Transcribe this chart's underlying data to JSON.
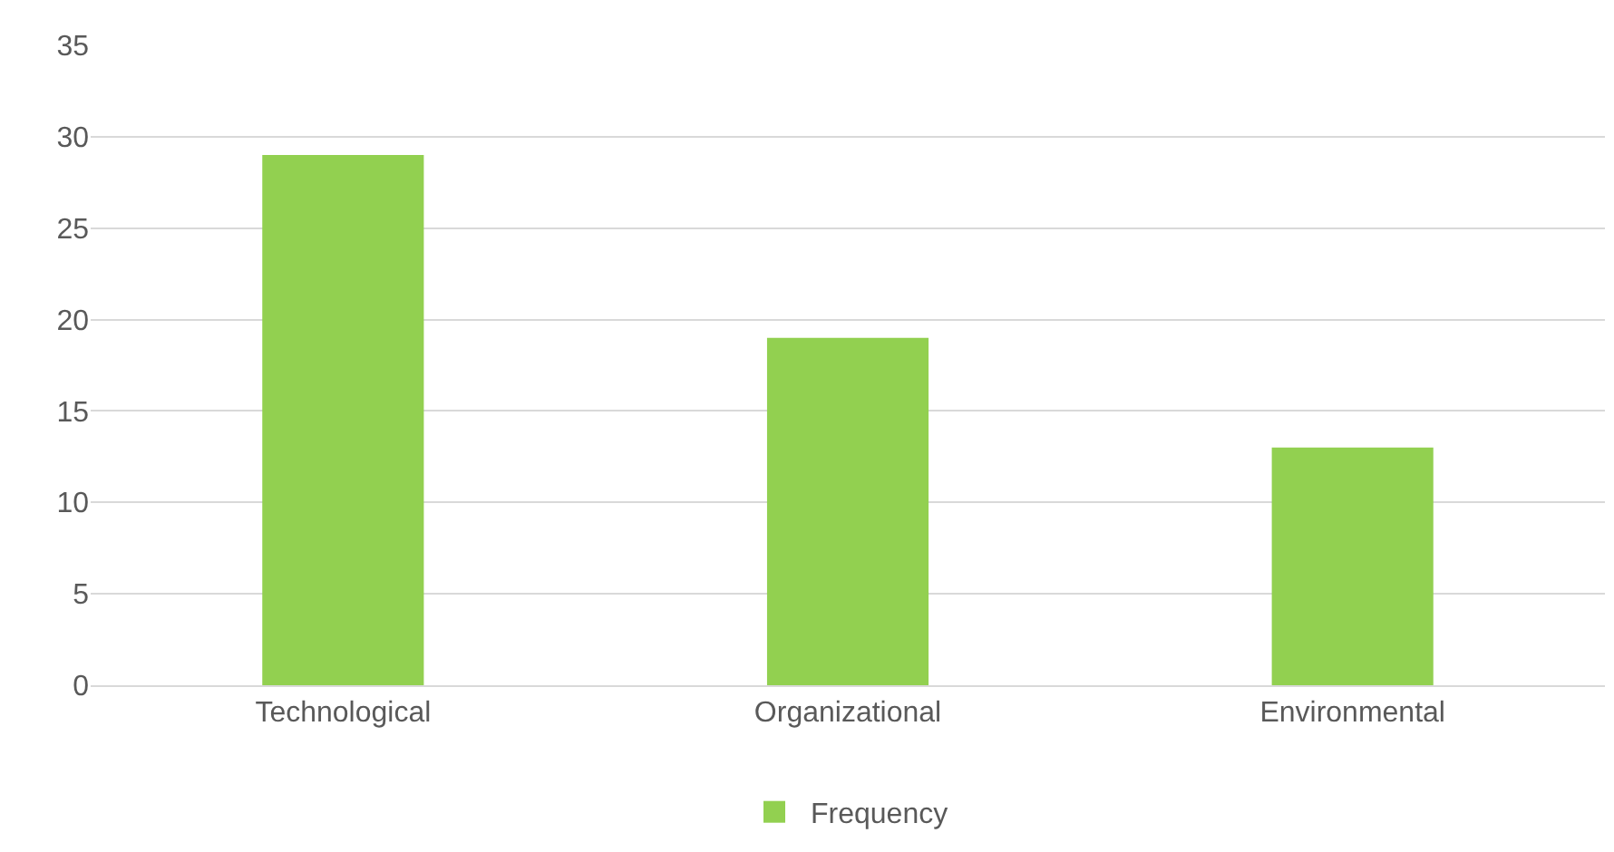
{
  "chart_data": {
    "type": "bar",
    "categories": [
      "Technological",
      "Organizational",
      "Environmental"
    ],
    "series": [
      {
        "name": "Frequency",
        "color": "#92d050",
        "values": [
          29,
          19,
          13
        ]
      }
    ],
    "ylim": [
      0,
      35
    ],
    "yticks": [
      0,
      5,
      10,
      15,
      20,
      25,
      30,
      35
    ],
    "grid": "y",
    "legend": "bottom"
  }
}
